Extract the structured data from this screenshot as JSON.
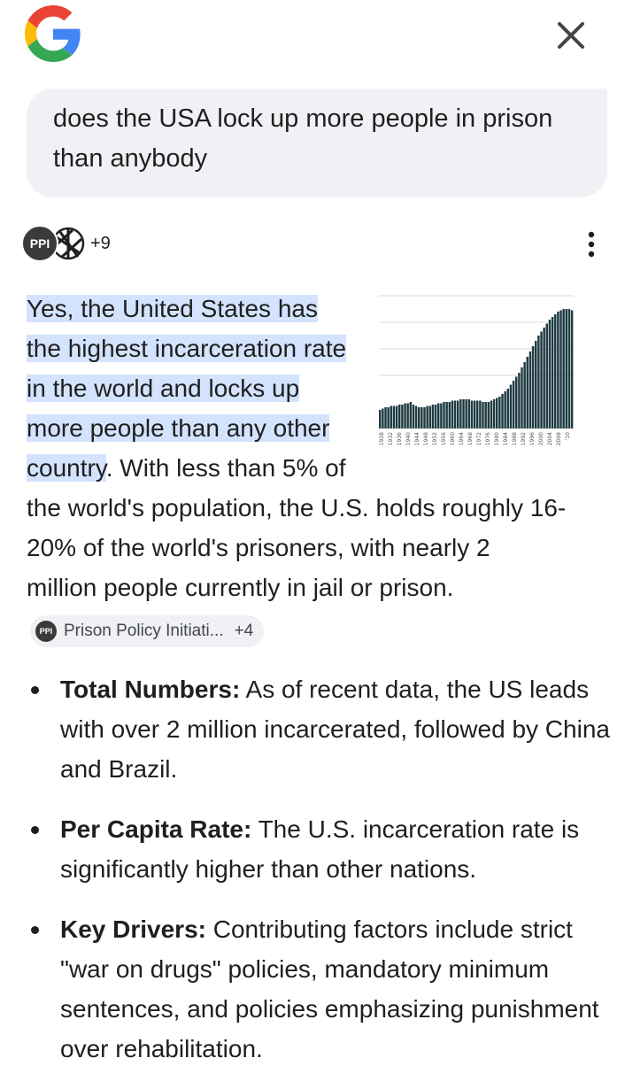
{
  "colors": {
    "highlight": "#d3e3fd",
    "bubble": "#eff1f5",
    "bar": "#1e3b42",
    "google_blue": "#4285F4",
    "google_red": "#EA4335",
    "google_yellow": "#FBBC05",
    "google_green": "#34A853"
  },
  "header": {
    "logo_icon": "google-g-icon",
    "close_icon": "close-icon"
  },
  "query": {
    "text": "does the USA lock up more people in prison than anybody"
  },
  "sources": {
    "primary_label": "PPI",
    "count": "+9",
    "more_icon": "more-vert-icon"
  },
  "answer": {
    "highlight": "Yes, the United States has the highest incarceration rate in the world and locks up more people than any other country",
    "body": ". With less than 5% of the world's population, the U.S. holds roughly 16-20% of the world's prisoners, with nearly 2 million people currently in jail or prison.",
    "citation": {
      "icon_label": "PPI",
      "label": "Prison Policy Initiati...",
      "more": "+4"
    }
  },
  "bullets": [
    {
      "title": "Total Numbers:",
      "text": " As of recent data, the US leads with over 2 million incarcerated, followed by China and Brazil."
    },
    {
      "title": "Per Capita Rate:",
      "text": " The U.S. incarceration rate is significantly higher than other nations."
    },
    {
      "title": "Key Drivers:",
      "text": " Contributing factors include strict \"war on drugs\" policies, mandatory minimum sentences, and policies emphasizing punishment over rehabilitation."
    }
  ],
  "chart_data": {
    "type": "bar",
    "title": "",
    "xlabel": "",
    "ylabel": "",
    "x_tick_labels": [
      "1928",
      "1932",
      "1936",
      "1940",
      "1944",
      "1948",
      "1952",
      "1956",
      "1960",
      "1964",
      "1968",
      "1972",
      "1976",
      "1980",
      "1984",
      "1988",
      "1992",
      "1996",
      "2000",
      "2004",
      "2008",
      "'10"
    ],
    "ylim": [
      0,
      100
    ],
    "values": [
      14,
      15,
      16,
      16,
      17,
      17,
      17,
      18,
      18,
      19,
      19,
      20,
      18,
      17,
      16,
      16,
      16,
      17,
      17,
      18,
      18,
      19,
      19,
      20,
      20,
      20,
      21,
      21,
      21,
      22,
      22,
      22,
      22,
      21,
      21,
      21,
      21,
      20,
      20,
      20,
      21,
      22,
      23,
      24,
      26,
      28,
      30,
      33,
      36,
      39,
      42,
      46,
      50,
      54,
      58,
      62,
      66,
      70,
      73,
      76,
      79,
      82,
      84,
      86,
      88,
      89,
      90,
      90,
      90,
      89
    ]
  }
}
